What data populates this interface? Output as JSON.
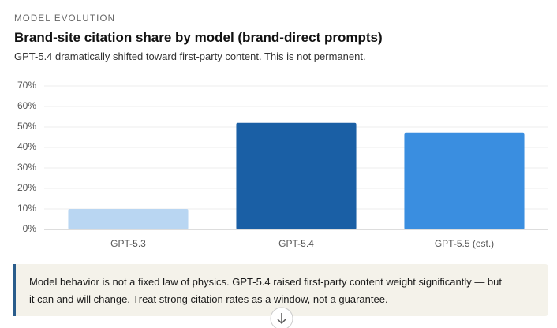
{
  "eyebrow": "MODEL EVOLUTION",
  "chart_data": {
    "type": "bar",
    "title": "Brand-site citation share by model (brand-direct prompts)",
    "subtitle": "GPT-5.4 dramatically shifted toward first-party content. This is not permanent.",
    "categories": [
      "GPT-5.3",
      "GPT-5.4",
      "GPT-5.5 (est.)"
    ],
    "values": [
      10,
      52,
      47
    ],
    "colors": [
      "#b9d6f2",
      "#1a5fa5",
      "#3a8ee0"
    ],
    "ylim": [
      0,
      70
    ],
    "yticks": [
      {
        "value": 0,
        "label": "0%"
      },
      {
        "value": 10,
        "label": "10%"
      },
      {
        "value": 20,
        "label": "20%"
      },
      {
        "value": 30,
        "label": "30%"
      },
      {
        "value": 40,
        "label": "40%"
      },
      {
        "value": 50,
        "label": "50%"
      },
      {
        "value": 60,
        "label": "60%"
      },
      {
        "value": 70,
        "label": "70%"
      }
    ],
    "grid": true
  },
  "callout": [
    "Model behavior is not a fixed law of physics. GPT-5.4 raised first-party content weight significantly — but",
    "it can and will change. Treat strong citation rates as a window, not a guarantee."
  ]
}
